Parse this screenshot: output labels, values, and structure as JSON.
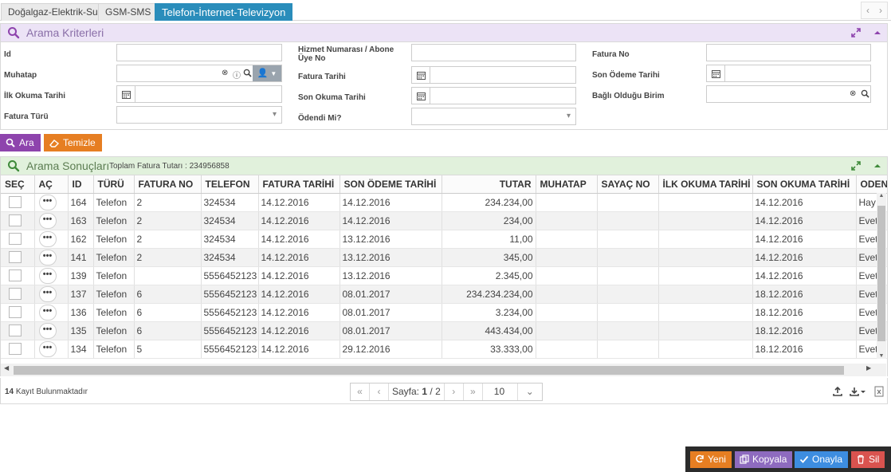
{
  "tabs": [
    {
      "label": "Doğalgaz-Elektrik-Su",
      "active": false
    },
    {
      "label": "GSM-SMS",
      "active": false
    },
    {
      "label": "Telefon-İnternet-Televizyon",
      "active": true
    }
  ],
  "criteria": {
    "title": "Arama Kriterleri",
    "labels": {
      "id": "Id",
      "muhatap": "Muhatap",
      "ilk_okuma": "İlk Okuma Tarihi",
      "fatura_turu": "Fatura Türü",
      "hizmet_no": "Hizmet Numarası / Abone Üye No",
      "fatura_tarihi": "Fatura Tarihi",
      "son_okuma": "Son Okuma Tarihi",
      "odendi": "Ödendi Mi?",
      "fatura_no": "Fatura No",
      "son_odeme": "Son Ödeme Tarihi",
      "bagli_birim": "Bağlı Olduğu Birim"
    },
    "search_label": "Ara",
    "clear_label": "Temizle"
  },
  "results": {
    "title": "Arama Sonuçları",
    "total_text": "Toplam Fatura Tutarı : 234956858",
    "columns": [
      "SEÇ",
      "AÇ",
      "ID",
      "TÜRÜ",
      "FATURA NO",
      "TELEFON",
      "FATURA TARİHİ",
      "SON ÖDEME TARİHİ",
      "TUTAR",
      "MUHATAP",
      "SAYAÇ NO",
      "İLK OKUMA TARİHİ",
      "SON OKUMA TARİHİ",
      "ODENDİ"
    ],
    "rows": [
      {
        "id": "164",
        "tur": "Telefon",
        "fatura_no": "2",
        "telefon": "324534",
        "fatura_tarihi": "14.12.2016",
        "son_odeme": "14.12.2016",
        "tutar": "234.234,00",
        "muhatap": "",
        "sayac": "",
        "ilk_okuma": "",
        "son_okuma": "14.12.2016",
        "odendi": "Hayır"
      },
      {
        "id": "163",
        "tur": "Telefon",
        "fatura_no": "2",
        "telefon": "324534",
        "fatura_tarihi": "14.12.2016",
        "son_odeme": "14.12.2016",
        "tutar": "234,00",
        "muhatap": "",
        "sayac": "",
        "ilk_okuma": "",
        "son_okuma": "14.12.2016",
        "odendi": "Evet"
      },
      {
        "id": "162",
        "tur": "Telefon",
        "fatura_no": "2",
        "telefon": "324534",
        "fatura_tarihi": "14.12.2016",
        "son_odeme": "13.12.2016",
        "tutar": "11,00",
        "muhatap": "",
        "sayac": "",
        "ilk_okuma": "",
        "son_okuma": "14.12.2016",
        "odendi": "Evet"
      },
      {
        "id": "141",
        "tur": "Telefon",
        "fatura_no": "2",
        "telefon": "324534",
        "fatura_tarihi": "14.12.2016",
        "son_odeme": "13.12.2016",
        "tutar": "345,00",
        "muhatap": "",
        "sayac": "",
        "ilk_okuma": "",
        "son_okuma": "14.12.2016",
        "odendi": "Evet"
      },
      {
        "id": "139",
        "tur": "Telefon",
        "fatura_no": "",
        "telefon": "5556452123",
        "fatura_tarihi": "14.12.2016",
        "son_odeme": "13.12.2016",
        "tutar": "2.345,00",
        "muhatap": "",
        "sayac": "",
        "ilk_okuma": "",
        "son_okuma": "14.12.2016",
        "odendi": "Evet"
      },
      {
        "id": "137",
        "tur": "Telefon",
        "fatura_no": "6",
        "telefon": "5556452123",
        "fatura_tarihi": "14.12.2016",
        "son_odeme": "08.01.2017",
        "tutar": "234.234.234,00",
        "muhatap": "",
        "sayac": "",
        "ilk_okuma": "",
        "son_okuma": "18.12.2016",
        "odendi": "Evet"
      },
      {
        "id": "136",
        "tur": "Telefon",
        "fatura_no": "6",
        "telefon": "5556452123",
        "fatura_tarihi": "14.12.2016",
        "son_odeme": "08.01.2017",
        "tutar": "3.234,00",
        "muhatap": "",
        "sayac": "",
        "ilk_okuma": "",
        "son_okuma": "18.12.2016",
        "odendi": "Evet"
      },
      {
        "id": "135",
        "tur": "Telefon",
        "fatura_no": "6",
        "telefon": "5556452123",
        "fatura_tarihi": "14.12.2016",
        "son_odeme": "08.01.2017",
        "tutar": "443.434,00",
        "muhatap": "",
        "sayac": "",
        "ilk_okuma": "",
        "son_okuma": "18.12.2016",
        "odendi": "Evet"
      },
      {
        "id": "134",
        "tur": "Telefon",
        "fatura_no": "5",
        "telefon": "5556452123",
        "fatura_tarihi": "14.12.2016",
        "son_odeme": "29.12.2016",
        "tutar": "33.333,00",
        "muhatap": "",
        "sayac": "",
        "ilk_okuma": "",
        "son_okuma": "18.12.2016",
        "odendi": "Evet"
      }
    ]
  },
  "footer": {
    "count": "14",
    "count_text": "Kayıt Bulunmaktadır",
    "page_label": "Sayfa:",
    "page_current": "1",
    "page_sep": "/",
    "page_total": "2",
    "page_size": "10"
  },
  "actions": {
    "new_label": "Yeni",
    "copy_label": "Kopyala",
    "approve_label": "Onayla",
    "delete_label": "Sil"
  },
  "colors": {
    "tab_active": "#2a8dbb",
    "search_btn": "#8e44ad",
    "clear_btn": "#e67e22",
    "new_btn": "#e67e22",
    "copy_btn": "#8e6bbf",
    "approve_btn": "#3d8de0",
    "delete_btn": "#d9534f"
  }
}
